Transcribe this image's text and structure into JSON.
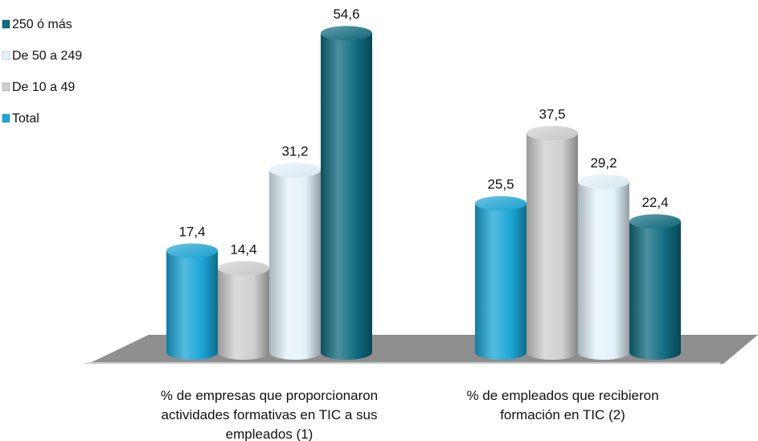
{
  "chart_data": {
    "type": "bar",
    "categories": [
      [
        "% de empresas que proporcionaron",
        "actividades formativas en TIC a sus",
        "empleados (1)"
      ],
      [
        "% de empleados que recibieron",
        "formación en TIC  (2)"
      ]
    ],
    "series": [
      {
        "name": "Total",
        "values": [
          17.4,
          25.5
        ],
        "labels": [
          "17,4",
          "25,5"
        ]
      },
      {
        "name": "De 10 a 49",
        "values": [
          14.4,
          37.5
        ],
        "labels": [
          "14,4",
          "37,5"
        ]
      },
      {
        "name": "De  50 a 249",
        "values": [
          31.2,
          29.2
        ],
        "labels": [
          "31,2",
          "29,2"
        ]
      },
      {
        "name": "250 ó más",
        "values": [
          54.6,
          22.4
        ],
        "labels": [
          "54,6",
          "22,4"
        ]
      }
    ],
    "legend_order": [
      "250 ó más",
      "De  50 a 249",
      "De 10 a 49",
      "Total"
    ],
    "legend_position": "top-left",
    "ylim": [
      0,
      60
    ],
    "grid": false,
    "colors": {
      "Total": "#1aa6d6",
      "De 10 a 49": "#cfcfcf",
      "De  50 a 249": "#e4f3fb",
      "250 ó más": "#0f6b7f"
    }
  }
}
